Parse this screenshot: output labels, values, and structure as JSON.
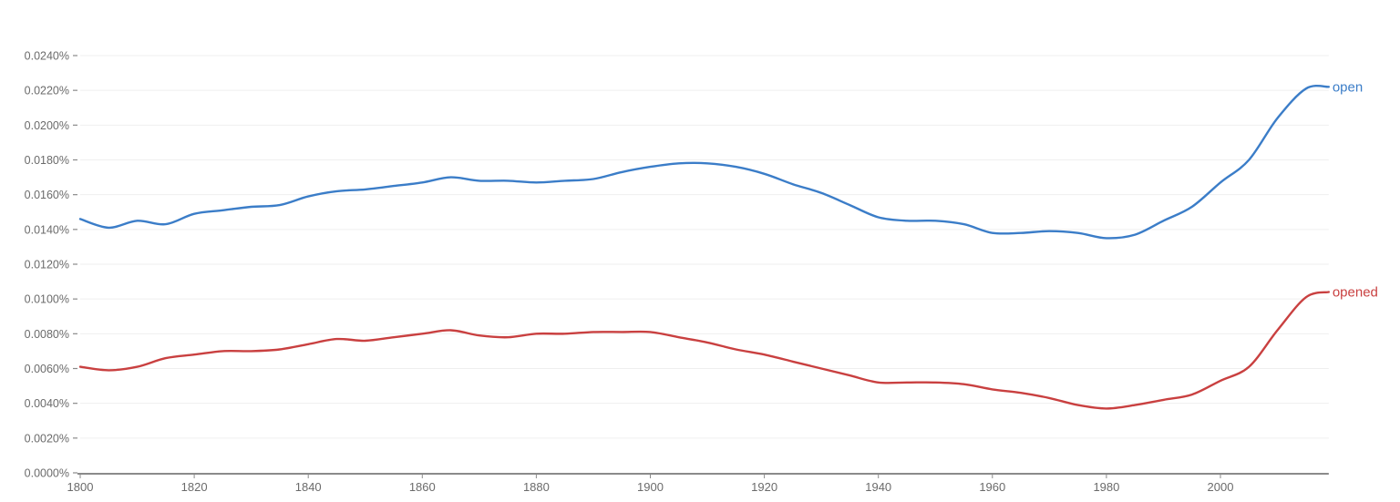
{
  "chart_data": {
    "type": "line",
    "title": "",
    "xlabel": "",
    "ylabel": "",
    "xlim": [
      1800,
      2019
    ],
    "ylim": [
      0,
      0.024
    ],
    "y_unit": "%",
    "grid": {
      "horizontal": true,
      "vertical": false
    },
    "legend_position": "inline-right-end",
    "x_ticks": [
      1800,
      1820,
      1840,
      1860,
      1880,
      1900,
      1920,
      1940,
      1960,
      1980,
      2000
    ],
    "x_tick_labels": [
      "1800",
      "1820",
      "1840",
      "1860",
      "1880",
      "1900",
      "1920",
      "1940",
      "1960",
      "1980",
      "2000"
    ],
    "y_ticks": [
      0,
      0.002,
      0.004,
      0.006,
      0.008,
      0.01,
      0.012,
      0.014,
      0.016,
      0.018,
      0.02,
      0.022,
      0.024
    ],
    "y_tick_labels": [
      "0.0000%",
      "0.0020%",
      "0.0040%",
      "0.0060%",
      "0.0080%",
      "0.0100%",
      "0.0120%",
      "0.0140%",
      "0.0160%",
      "0.0180%",
      "0.0200%",
      "0.0220%",
      "0.0240%"
    ],
    "x": [
      1800,
      1805,
      1810,
      1815,
      1820,
      1825,
      1830,
      1835,
      1840,
      1845,
      1850,
      1855,
      1860,
      1865,
      1870,
      1875,
      1880,
      1885,
      1890,
      1895,
      1900,
      1905,
      1910,
      1915,
      1920,
      1925,
      1930,
      1935,
      1940,
      1945,
      1950,
      1955,
      1960,
      1965,
      1970,
      1975,
      1980,
      1985,
      1990,
      1995,
      2000,
      2005,
      2010,
      2015,
      2019
    ],
    "series": [
      {
        "name": "open",
        "color": "#3b7dc8",
        "values": [
          0.0146,
          0.0141,
          0.0145,
          0.0143,
          0.0149,
          0.0151,
          0.0153,
          0.0154,
          0.0159,
          0.0162,
          0.0163,
          0.0165,
          0.0167,
          0.017,
          0.0168,
          0.0168,
          0.0167,
          0.0168,
          0.0169,
          0.0173,
          0.0176,
          0.0178,
          0.0178,
          0.0176,
          0.0172,
          0.0166,
          0.0161,
          0.0154,
          0.0147,
          0.0145,
          0.0145,
          0.0143,
          0.0138,
          0.0138,
          0.0139,
          0.0138,
          0.0135,
          0.0137,
          0.0145,
          0.0153,
          0.0167,
          0.018,
          0.0204,
          0.0221,
          0.0222
        ]
      },
      {
        "name": "opened",
        "color": "#c94040",
        "values": [
          0.0061,
          0.0059,
          0.0061,
          0.0066,
          0.0068,
          0.007,
          0.007,
          0.0071,
          0.0074,
          0.0077,
          0.0076,
          0.0078,
          0.008,
          0.0082,
          0.0079,
          0.0078,
          0.008,
          0.008,
          0.0081,
          0.0081,
          0.0081,
          0.0078,
          0.0075,
          0.0071,
          0.0068,
          0.0064,
          0.006,
          0.0056,
          0.0052,
          0.0052,
          0.0052,
          0.0051,
          0.0048,
          0.0046,
          0.0043,
          0.0039,
          0.0037,
          0.0039,
          0.0042,
          0.0045,
          0.0053,
          0.0061,
          0.0082,
          0.0101,
          0.0104
        ]
      }
    ]
  },
  "colors": {
    "axis": "#8a8a8a",
    "grid": "#efefef",
    "tick_label": "#6b6b6b",
    "background": "#ffffff"
  }
}
